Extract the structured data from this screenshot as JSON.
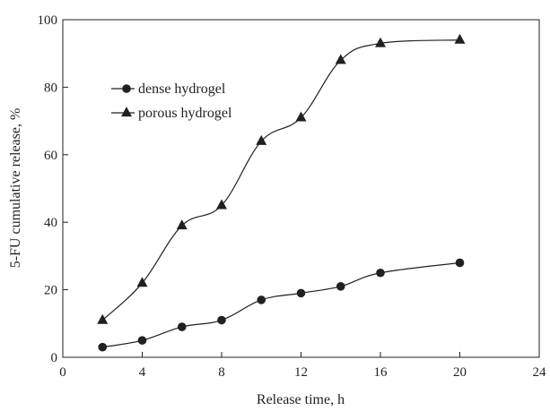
{
  "chart_data": {
    "type": "line",
    "title": "",
    "xlabel": "Release time, h",
    "ylabel": "5-FU cumulative release, %",
    "xlim": [
      0,
      24
    ],
    "ylim": [
      0,
      100
    ],
    "xticks": [
      0,
      4,
      8,
      12,
      16,
      20,
      24
    ],
    "yticks": [
      0,
      20,
      40,
      60,
      80,
      100
    ],
    "grid": false,
    "legend_position": "top-left",
    "series": [
      {
        "name": "dense hydrogel",
        "marker": "circle",
        "color": "#231f20",
        "x": [
          2,
          4,
          6,
          8,
          10,
          12,
          14,
          16,
          20
        ],
        "y": [
          3,
          5,
          9,
          11,
          17,
          19,
          21,
          25,
          28
        ]
      },
      {
        "name": "porous hydrogel",
        "marker": "triangle",
        "color": "#231f20",
        "x": [
          2,
          4,
          6,
          8,
          10,
          12,
          14,
          16,
          20
        ],
        "y": [
          11,
          22,
          39,
          45,
          64,
          71,
          88,
          93,
          94
        ]
      }
    ]
  }
}
